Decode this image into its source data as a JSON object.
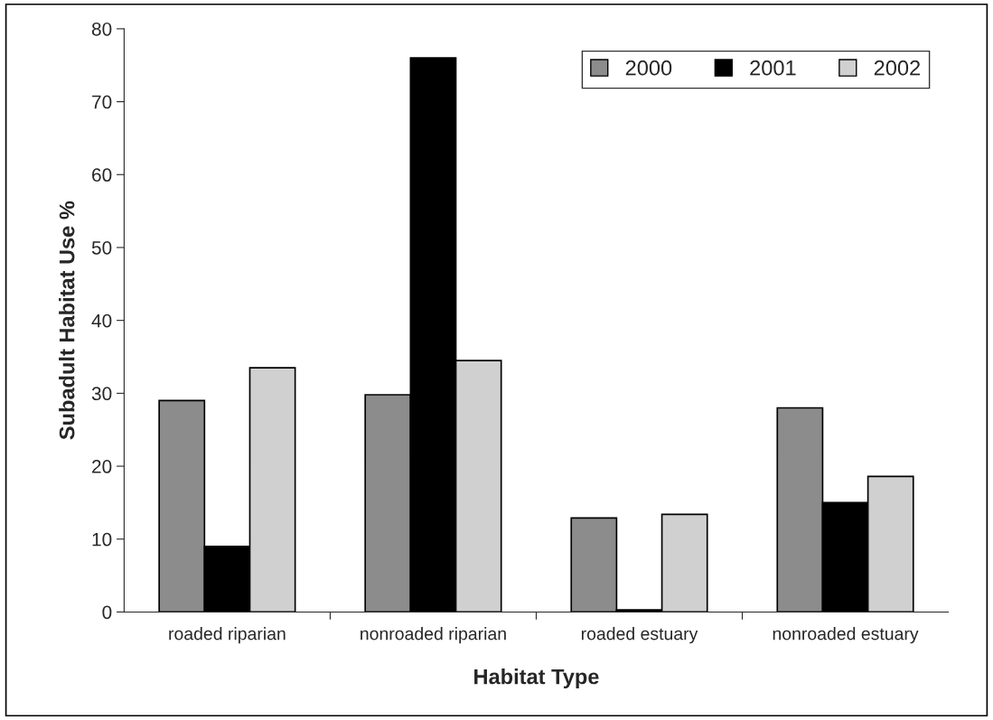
{
  "chart_data": {
    "type": "bar",
    "xlabel": "Habitat Type",
    "ylabel": "Subadult Habitat Use %",
    "categories": [
      "roaded riparian",
      "nonroaded riparian",
      "roaded estuary",
      "nonroaded estuary"
    ],
    "series": [
      {
        "name": "2000",
        "color": "#8c8c8c",
        "values": [
          29,
          29.8,
          12.9,
          28
        ]
      },
      {
        "name": "2001",
        "color": "#000000",
        "values": [
          9,
          76,
          0.3,
          15
        ]
      },
      {
        "name": "2002",
        "color": "#d0d0d0",
        "values": [
          33.5,
          34.5,
          13.4,
          18.6
        ]
      }
    ],
    "ylim": [
      0,
      80
    ],
    "yticks": [
      0,
      10,
      20,
      30,
      40,
      50,
      60,
      70,
      80
    ],
    "grid": false,
    "legend": "top right"
  }
}
